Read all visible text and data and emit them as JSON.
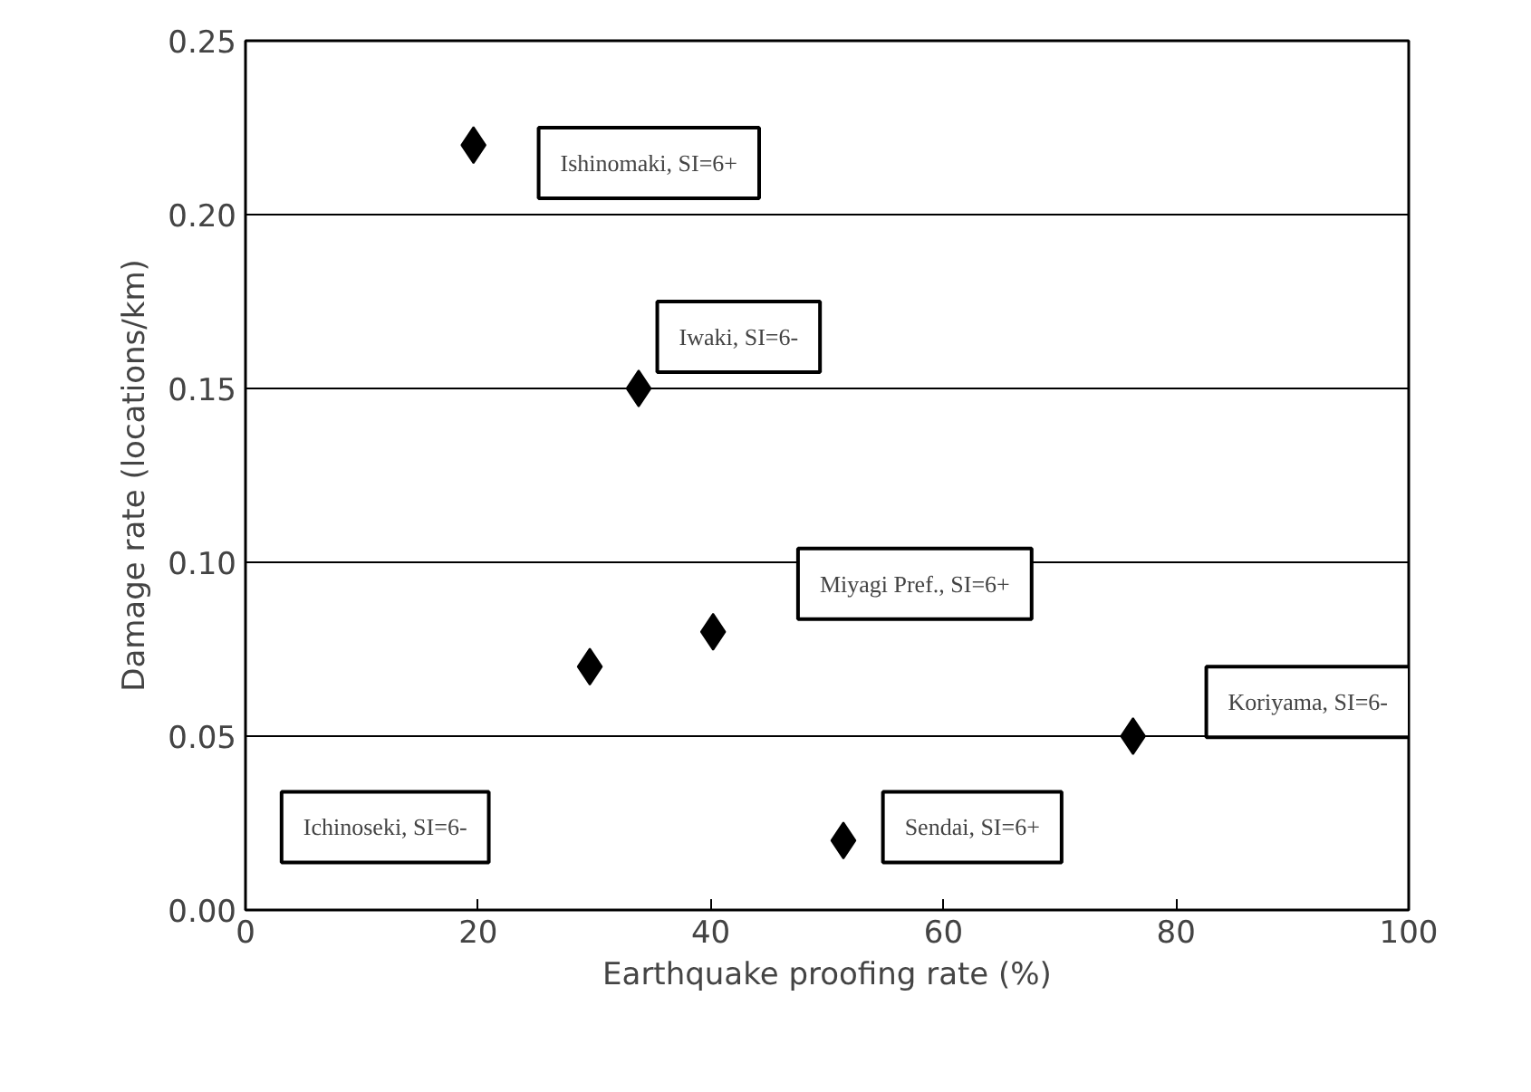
{
  "chart_data": {
    "type": "scatter",
    "xlabel": "Earthquake proofing rate (%)",
    "ylabel": "Damage rate (locations/km)",
    "x": [
      19.6,
      33.8,
      29.6,
      40.2,
      76.3,
      51.4
    ],
    "values": [
      0.22,
      0.15,
      0.07,
      0.08,
      0.05,
      0.02
    ],
    "color": "#000000",
    "marker": "diamond",
    "xlim": [
      0,
      100
    ],
    "ylim": [
      0,
      0.25
    ],
    "xticks": [
      0,
      20,
      40,
      60,
      80,
      100
    ],
    "yticks": [
      {
        "value": 0,
        "label": "0.00"
      },
      {
        "value": 0.05,
        "label": "0.05"
      },
      {
        "value": 0.1,
        "label": "0.10"
      },
      {
        "value": 0.15,
        "label": "0.15"
      },
      {
        "value": 0.2,
        "label": "0.20"
      },
      {
        "value": 0.25,
        "label": "0.25"
      }
    ],
    "grid": "y",
    "annotations": [
      "Ishinomaki, SI=6+",
      "Iwaki, SI=6-",
      "Ichinoseki, SI=6-",
      "Miyagi Pref., SI=6+",
      "Koriyama, SI=6-",
      "Sendai, SI=6+"
    ]
  }
}
